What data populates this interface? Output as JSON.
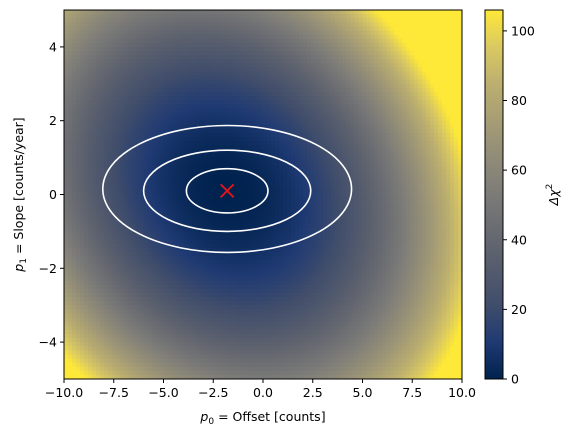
{
  "chart_data": {
    "type": "heatmap",
    "xlabel_sym": "p",
    "xlabel_sub": "0",
    "xlabel_rest": " = Offset [counts]",
    "ylabel_sym": "p",
    "ylabel_sub": "1",
    "ylabel_rest": " = Slope [counts/year]",
    "xlim": [
      -10,
      10
    ],
    "ylim": [
      -5,
      5
    ],
    "x_ticks": [
      -10,
      -7.5,
      -5,
      -2.5,
      0,
      2.5,
      5,
      7.5,
      10
    ],
    "x_tick_labels": [
      "−10.0",
      "−7.5",
      "−5.0",
      "−2.5",
      "0.0",
      "2.5",
      "5.0",
      "7.5",
      "10.0"
    ],
    "y_ticks": [
      -4,
      -2,
      0,
      2,
      4
    ],
    "y_tick_labels": [
      "−4",
      "−2",
      "0",
      "2",
      "4"
    ],
    "best_fit": {
      "x": -1.8,
      "y": 0.1,
      "marker": "x",
      "color": "#e8141a"
    },
    "contours": [
      {
        "cx": -1.8,
        "cy": 0.1,
        "rx": 2.05,
        "ry": 0.6
      },
      {
        "cx": -1.8,
        "cy": 0.1,
        "rx": 4.2,
        "ry": 1.1
      },
      {
        "cx": -1.8,
        "cy": 0.15,
        "rx": 6.25,
        "ry": 1.72
      }
    ],
    "contour_color": "#ffffff",
    "colormap": "cividis",
    "colorbar": {
      "label_sym": "Δχ",
      "label_sup": "2",
      "vmin": 0,
      "vmax": 106,
      "ticks": [
        0,
        20,
        40,
        60,
        80,
        100
      ],
      "tick_labels": [
        "0",
        "20",
        "40",
        "60",
        "80",
        "100"
      ]
    }
  }
}
